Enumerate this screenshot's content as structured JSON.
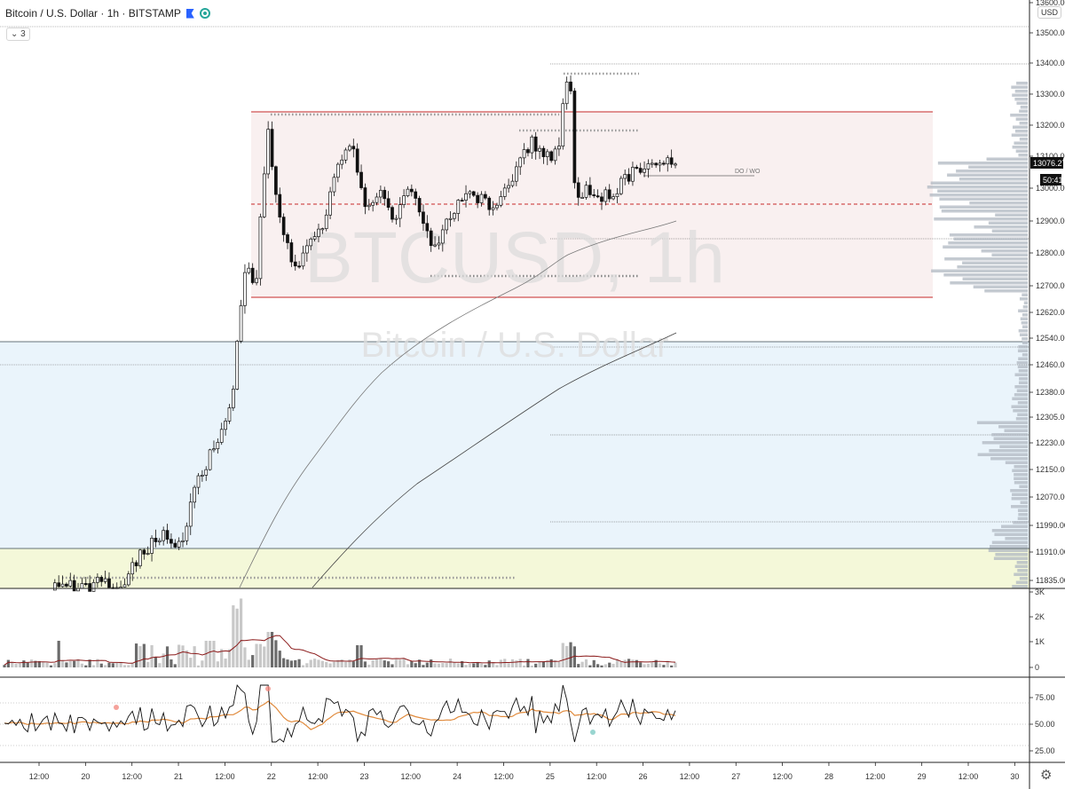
{
  "header": {
    "symbol_title": "Bitcoin / U.S. Dollar · 1h · BITSTAMP",
    "collapse_count": "3",
    "currency_label": "USD"
  },
  "watermark": {
    "ticker": "BTCUSD, 1h",
    "name": "Bitcoin / U.S. Dollar"
  },
  "price_axis": {
    "ticks": [
      "13600.00",
      "13500.00",
      "13400.00",
      "13300.00",
      "13200.00",
      "13100.00",
      "13000.00",
      "12900.00",
      "12800.00",
      "12700.00",
      "12620.00",
      "12540.00",
      "12460.00",
      "12380.00",
      "12305.00",
      "12230.00",
      "12150.00",
      "12070.00",
      "11990.00",
      "11910.00",
      "11835.00"
    ],
    "last_price": "13076.27",
    "countdown": "50:41"
  },
  "annotation_label": "DO / WO",
  "volume_axis": {
    "ticks": [
      "3K",
      "2K",
      "1K",
      "0"
    ]
  },
  "rsi_axis": {
    "ticks": [
      "75.00",
      "50.00",
      "25.00"
    ]
  },
  "time_axis": {
    "ticks": [
      "12:00",
      "20",
      "12:00",
      "21",
      "12:00",
      "22",
      "12:00",
      "23",
      "12:00",
      "24",
      "12:00",
      "25",
      "12:00",
      "26",
      "12:00",
      "27",
      "12:00",
      "28",
      "12:00",
      "29",
      "12:00",
      "30"
    ]
  },
  "colors": {
    "up_candle": "#ffffff",
    "down_candle": "#111111",
    "range_box": "#f8eded",
    "range_border": "#c62828",
    "blue_zone": "#eaf4fb",
    "yellow_zone": "#f4f8d9",
    "volume_ma": "#8b1a1a",
    "rsi_ma": "#e08a3c"
  },
  "icons": {
    "flag": "flag-icon",
    "visibility": "eye-icon",
    "collapse": "chevron-down-icon",
    "settings": "gear-icon"
  }
}
